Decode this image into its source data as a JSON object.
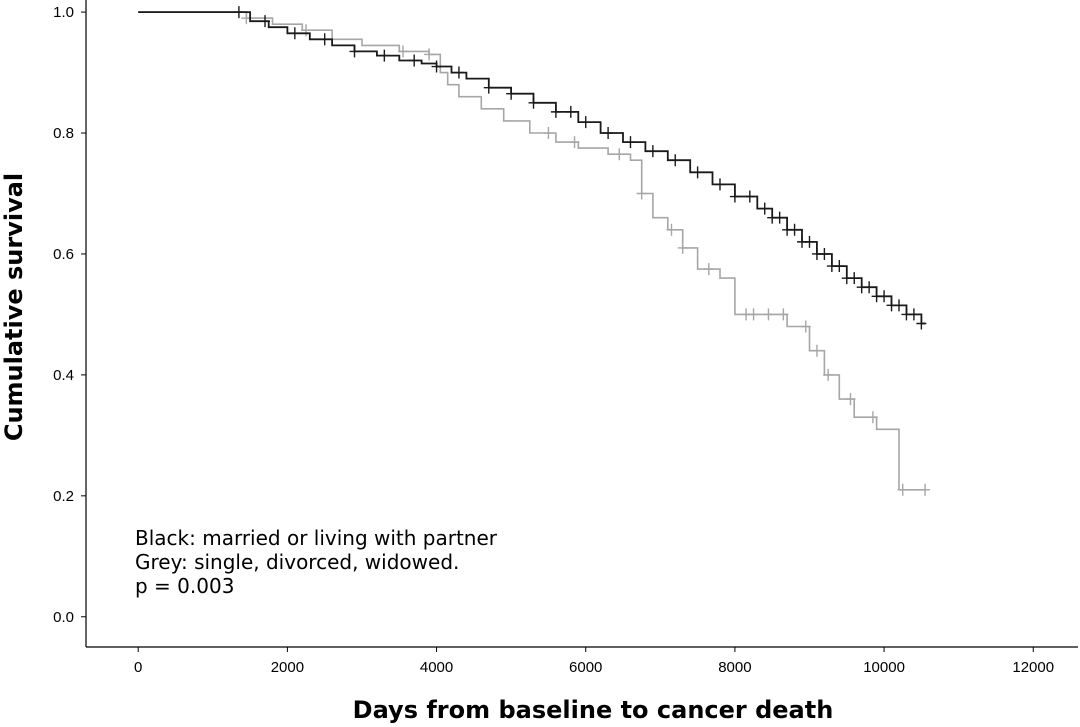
{
  "chart_data": {
    "type": "line",
    "subtype": "kaplan-meier step",
    "xlabel": "Days from baseline to cancer death",
    "ylabel": "Cumulative survival",
    "xlim": [
      -700,
      12600
    ],
    "ylim": [
      -0.05,
      1.02
    ],
    "x_ticks": [
      0,
      2000,
      4000,
      6000,
      8000,
      10000,
      12000
    ],
    "y_ticks": [
      0.0,
      0.2,
      0.4,
      0.6,
      0.8,
      1.0
    ],
    "y_tick_labels": [
      "0.0",
      "0.2",
      "0.4",
      "0.6",
      "0.8",
      "1.0"
    ],
    "grid": false,
    "annotations": [
      "Black: married or living with partner",
      "Grey: single, divorced, widowed.",
      "p = 0.003"
    ],
    "series": [
      {
        "name": "Black: married or living with partner",
        "color": "#1a1a1a",
        "x": [
          0,
          1250,
          1500,
          1750,
          2000,
          2300,
          2600,
          2900,
          3200,
          3500,
          3800,
          4000,
          4200,
          4400,
          4700,
          5000,
          5300,
          5600,
          5900,
          6200,
          6500,
          6800,
          7100,
          7400,
          7700,
          8000,
          8300,
          8500,
          8700,
          8900,
          9100,
          9300,
          9500,
          9700,
          9900,
          10100,
          10300,
          10500,
          10550
        ],
        "y": [
          1.0,
          1.0,
          0.985,
          0.975,
          0.965,
          0.955,
          0.945,
          0.935,
          0.928,
          0.92,
          0.915,
          0.91,
          0.9,
          0.89,
          0.875,
          0.865,
          0.85,
          0.835,
          0.818,
          0.8,
          0.785,
          0.77,
          0.755,
          0.735,
          0.715,
          0.695,
          0.675,
          0.66,
          0.64,
          0.62,
          0.6,
          0.58,
          0.56,
          0.545,
          0.53,
          0.515,
          0.5,
          0.485,
          0.485
        ],
        "censor_x": [
          1350,
          1700,
          2100,
          2500,
          2900,
          3300,
          3700,
          4000,
          4300,
          4700,
          5000,
          5300,
          5600,
          5800,
          6000,
          6300,
          6600,
          6900,
          7200,
          7500,
          7800,
          8000,
          8200,
          8400,
          8500,
          8600,
          8700,
          8800,
          8900,
          9000,
          9100,
          9200,
          9300,
          9400,
          9500,
          9600,
          9700,
          9800,
          9900,
          10000,
          10100,
          10200,
          10300,
          10400,
          10500
        ]
      },
      {
        "name": "Grey: single, divorced, widowed.",
        "color": "#a6a6a6",
        "x": [
          0,
          1200,
          1450,
          1800,
          2200,
          2600,
          3000,
          3500,
          3900,
          4050,
          4150,
          4300,
          4600,
          4900,
          5250,
          5600,
          5900,
          6300,
          6600,
          6750,
          6900,
          7100,
          7300,
          7500,
          7800,
          8000,
          8200,
          8500,
          8700,
          9000,
          9200,
          9400,
          9600,
          9900,
          10200,
          10550
        ],
        "y": [
          1.0,
          1.0,
          0.99,
          0.98,
          0.97,
          0.955,
          0.945,
          0.935,
          0.93,
          0.9,
          0.88,
          0.86,
          0.84,
          0.82,
          0.8,
          0.785,
          0.775,
          0.765,
          0.755,
          0.7,
          0.66,
          0.64,
          0.61,
          0.575,
          0.56,
          0.5,
          0.5,
          0.5,
          0.48,
          0.44,
          0.4,
          0.36,
          0.33,
          0.31,
          0.21,
          0.21
        ],
        "censor_x": [
          1450,
          2250,
          3550,
          3900,
          5500,
          5850,
          6450,
          6750,
          7150,
          7300,
          7650,
          8150,
          8250,
          8450,
          8650,
          8950,
          9100,
          9250,
          9550,
          9850,
          10250,
          10550
        ]
      }
    ]
  }
}
